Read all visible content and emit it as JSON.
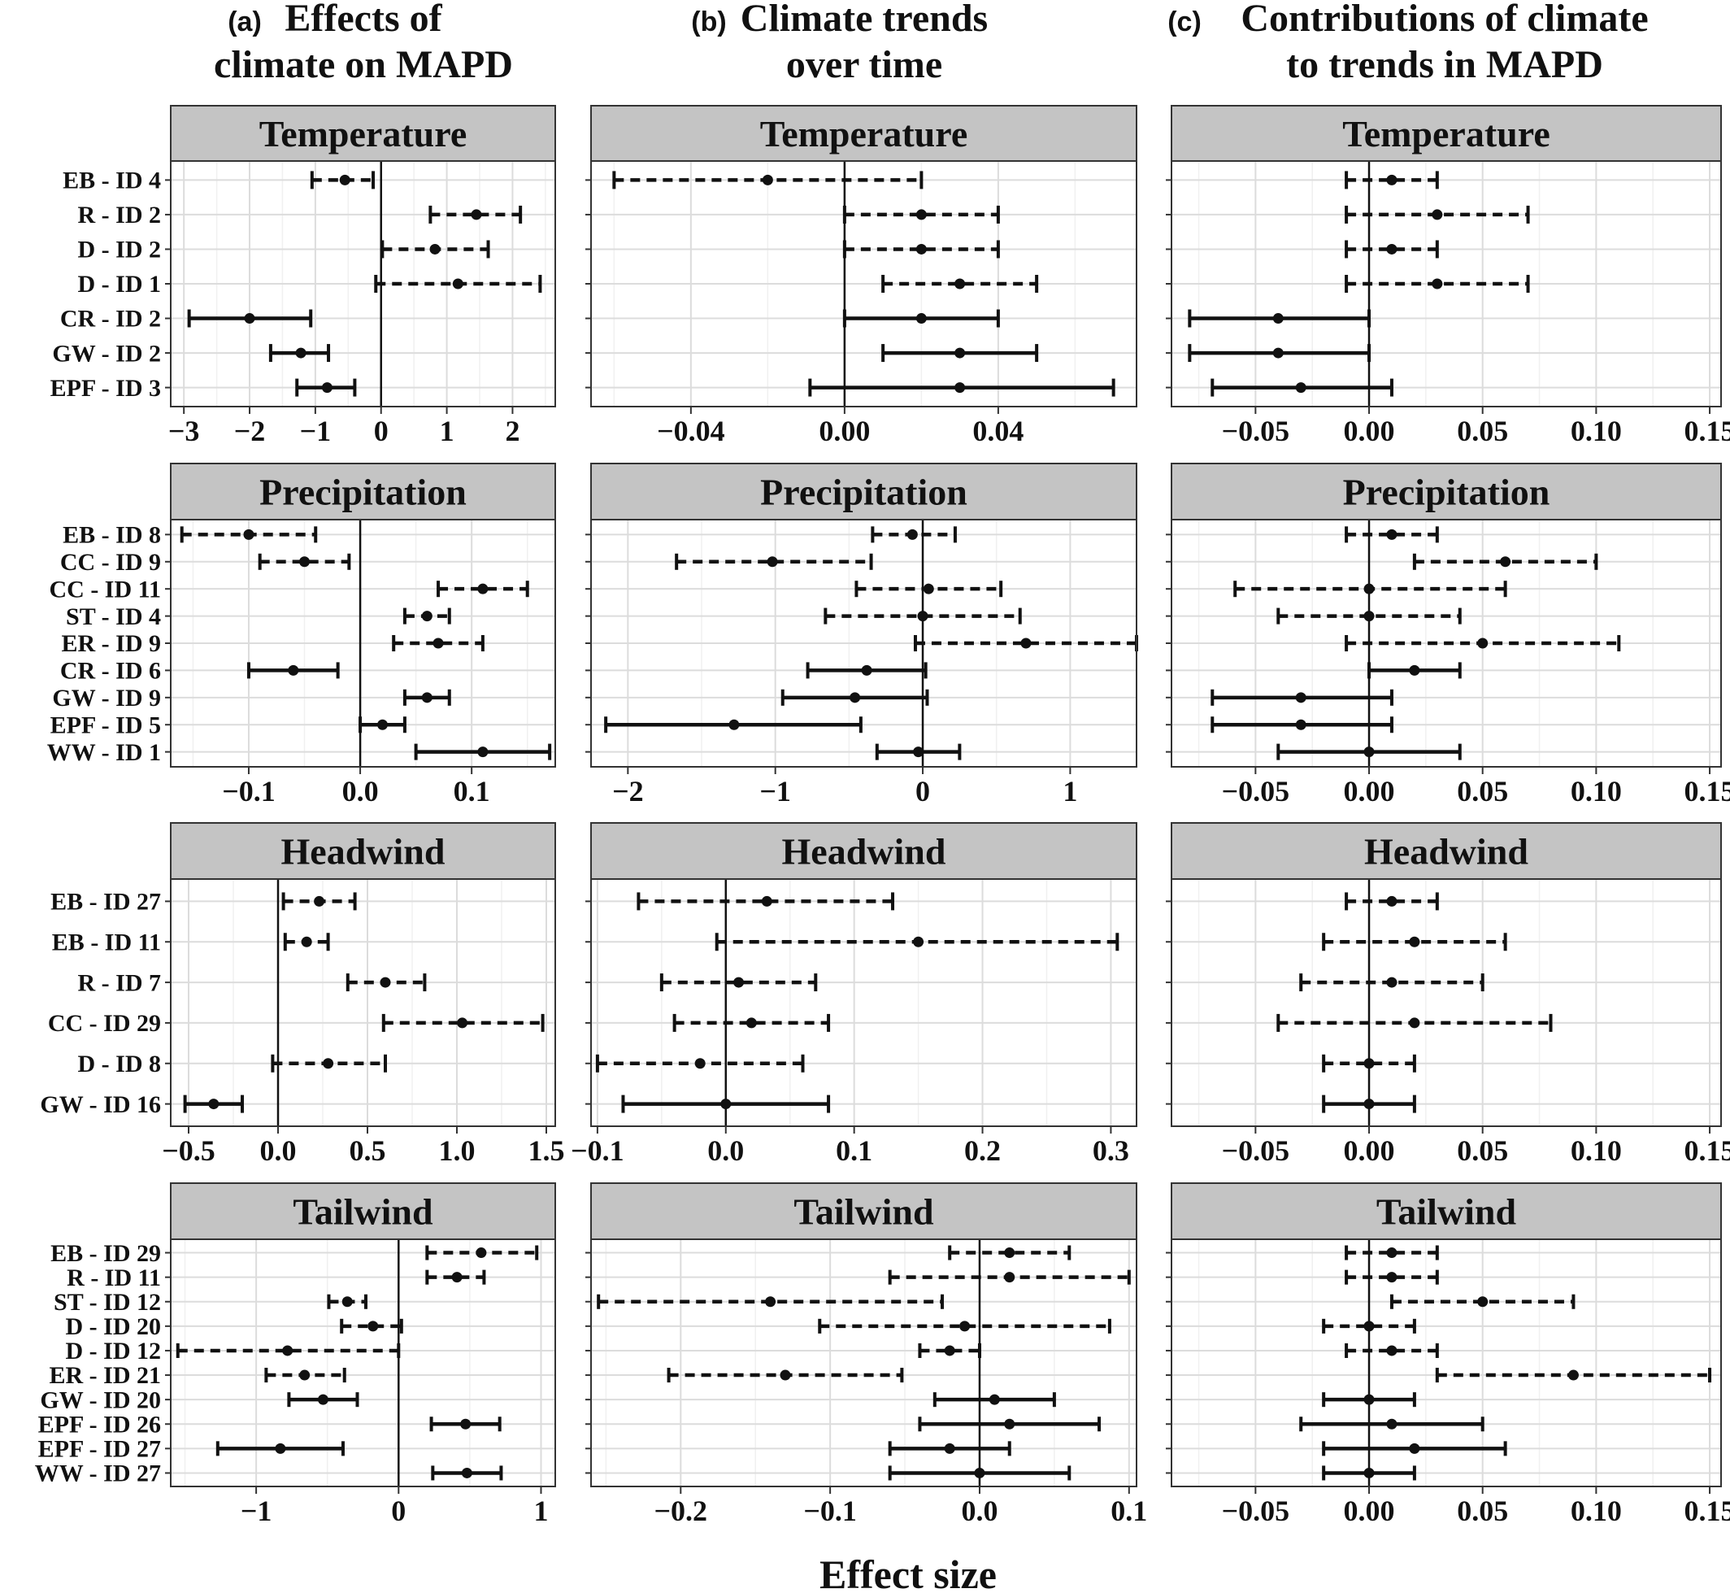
{
  "column_titles": [
    {
      "letter": "(a)",
      "line1": "Effects of",
      "line2": "climate on MAPD"
    },
    {
      "letter": "(b)",
      "line1": "Climate trends",
      "line2": "over time"
    },
    {
      "letter": "(c)",
      "line1": "Contributions of climate",
      "line2": "to trends in MAPD"
    }
  ],
  "x_axis_title": "Effect size",
  "chart_data": [
    {
      "type": "errorbar",
      "column": "a",
      "facet": "Temperature",
      "xlim": [
        -3.2,
        2.65
      ],
      "xticks": [
        -3,
        -2,
        -1,
        0,
        1,
        2
      ],
      "xtick_labels": [
        "−3",
        "−2",
        "−1",
        "0",
        "1",
        "2"
      ],
      "labels": [
        "EB - ID 4",
        "R - ID 2",
        "D - ID 2",
        "D - ID 1",
        "CR - ID 2",
        "GW - ID 2",
        "EPF - ID 3"
      ],
      "estimate": [
        -0.55,
        1.45,
        0.82,
        1.17,
        -2.0,
        -1.22,
        -0.82
      ],
      "lower": [
        -1.05,
        0.75,
        0.02,
        -0.08,
        -2.92,
        -1.68,
        -1.28
      ],
      "upper": [
        -0.12,
        2.12,
        1.63,
        2.42,
        -1.07,
        -0.8,
        -0.4
      ],
      "significant": [
        false,
        false,
        false,
        false,
        true,
        true,
        true
      ]
    },
    {
      "type": "errorbar",
      "column": "b",
      "facet": "Temperature",
      "xlim": [
        -0.066,
        0.076
      ],
      "xticks": [
        -0.04,
        0.0,
        0.04
      ],
      "xtick_labels": [
        "−0.04",
        "0.00",
        "0.04"
      ],
      "labels": [
        "EB - ID 4",
        "R - ID 2",
        "D - ID 2",
        "D - ID 1",
        "CR - ID 2",
        "GW - ID 2",
        "EPF - ID 3"
      ],
      "estimate": [
        -0.02,
        0.02,
        0.02,
        0.03,
        0.02,
        0.03,
        0.03
      ],
      "lower": [
        -0.06,
        0.0,
        0.0,
        0.01,
        0.0,
        0.01,
        -0.009
      ],
      "upper": [
        0.02,
        0.04,
        0.04,
        0.05,
        0.04,
        0.05,
        0.07
      ],
      "significant": [
        false,
        false,
        false,
        false,
        true,
        true,
        true
      ]
    },
    {
      "type": "errorbar",
      "column": "c",
      "facet": "Temperature",
      "xlim": [
        -0.087,
        0.155
      ],
      "xticks": [
        -0.05,
        0.0,
        0.05,
        0.1,
        0.15
      ],
      "xtick_labels": [
        "−0.05",
        "0.00",
        "0.05",
        "0.10",
        "0.15"
      ],
      "labels": [
        "EB - ID 4",
        "R - ID 2",
        "D - ID 2",
        "D - ID 1",
        "CR - ID 2",
        "GW - ID 2",
        "EPF - ID 3"
      ],
      "estimate": [
        0.01,
        0.03,
        0.01,
        0.03,
        -0.04,
        -0.04,
        -0.03
      ],
      "lower": [
        -0.01,
        -0.01,
        -0.01,
        -0.01,
        -0.079,
        -0.079,
        -0.069
      ],
      "upper": [
        0.03,
        0.07,
        0.03,
        0.07,
        0.0,
        0.0,
        0.01
      ],
      "significant": [
        false,
        false,
        false,
        false,
        true,
        true,
        true
      ]
    },
    {
      "type": "errorbar",
      "column": "a",
      "facet": "Precipitation",
      "xlim": [
        -0.17,
        0.175
      ],
      "xticks": [
        -0.1,
        0.0,
        0.1
      ],
      "xtick_labels": [
        "−0.1",
        "0.0",
        "0.1"
      ],
      "labels": [
        "EB - ID 8",
        "CC - ID 9",
        "CC - ID 11",
        "ST - ID 4",
        "ER - ID 9",
        "CR - ID 6",
        "GW - ID 9",
        "EPF - ID 5",
        "WW - ID 1"
      ],
      "estimate": [
        -0.1,
        -0.05,
        0.11,
        0.06,
        0.07,
        -0.06,
        0.06,
        0.02,
        0.11
      ],
      "lower": [
        -0.16,
        -0.09,
        0.07,
        0.04,
        0.03,
        -0.1,
        0.04,
        0.0,
        0.05
      ],
      "upper": [
        -0.04,
        -0.01,
        0.15,
        0.08,
        0.11,
        -0.02,
        0.08,
        0.04,
        0.17
      ],
      "significant": [
        false,
        false,
        false,
        false,
        false,
        true,
        true,
        true,
        true
      ]
    },
    {
      "type": "errorbar",
      "column": "b",
      "facet": "Precipitation",
      "xlim": [
        -2.25,
        1.45
      ],
      "xticks": [
        -2,
        -1,
        0,
        1
      ],
      "xtick_labels": [
        "−2",
        "−1",
        "0",
        "1"
      ],
      "labels": [
        "EB - ID 8",
        "CC - ID 9",
        "CC - ID 11",
        "ST - ID 4",
        "ER - ID 9",
        "CR - ID 6",
        "GW - ID 9",
        "EPF - ID 5",
        "WW - ID 1"
      ],
      "estimate": [
        -0.07,
        -1.02,
        0.04,
        0.0,
        0.7,
        -0.38,
        -0.46,
        -1.28,
        -0.03
      ],
      "lower": [
        -0.34,
        -1.67,
        -0.45,
        -0.66,
        -0.05,
        -0.78,
        -0.95,
        -2.15,
        -0.31
      ],
      "upper": [
        0.22,
        -0.35,
        0.53,
        0.66,
        1.45,
        0.02,
        0.03,
        -0.42,
        0.25
      ],
      "significant": [
        false,
        false,
        false,
        false,
        false,
        true,
        true,
        true,
        true
      ]
    },
    {
      "type": "errorbar",
      "column": "c",
      "facet": "Precipitation",
      "xlim": [
        -0.087,
        0.155
      ],
      "xticks": [
        -0.05,
        0.0,
        0.05,
        0.1,
        0.15
      ],
      "xtick_labels": [
        "−0.05",
        "0.00",
        "0.05",
        "0.10",
        "0.15"
      ],
      "labels": [
        "EB - ID 8",
        "CC - ID 9",
        "CC - ID 11",
        "ST - ID 4",
        "ER - ID 9",
        "CR - ID 6",
        "GW - ID 9",
        "EPF - ID 5",
        "WW - ID 1"
      ],
      "estimate": [
        0.01,
        0.06,
        0.0,
        0.0,
        0.05,
        0.02,
        -0.03,
        -0.03,
        0.0
      ],
      "lower": [
        -0.01,
        0.02,
        -0.059,
        -0.04,
        -0.01,
        0.0,
        -0.069,
        -0.069,
        -0.04
      ],
      "upper": [
        0.03,
        0.1,
        0.06,
        0.04,
        0.11,
        0.04,
        0.01,
        0.01,
        0.04
      ],
      "significant": [
        false,
        false,
        false,
        false,
        false,
        true,
        true,
        true,
        true
      ]
    },
    {
      "type": "errorbar",
      "column": "a",
      "facet": "Headwind",
      "xlim": [
        -0.6,
        1.55
      ],
      "xticks": [
        -0.5,
        0.0,
        0.5,
        1.0,
        1.5
      ],
      "xtick_labels": [
        "−0.5",
        "0.0",
        "0.5",
        "1.0",
        "1.5"
      ],
      "labels": [
        "EB - ID 27",
        "EB - ID 11",
        "R - ID 7",
        "CC - ID 29",
        "D - ID 8",
        "GW - ID 16"
      ],
      "estimate": [
        0.23,
        0.16,
        0.6,
        1.03,
        0.28,
        -0.36
      ],
      "lower": [
        0.03,
        0.04,
        0.39,
        0.59,
        -0.03,
        -0.52
      ],
      "upper": [
        0.43,
        0.28,
        0.82,
        1.48,
        0.6,
        -0.2
      ],
      "significant": [
        false,
        false,
        false,
        false,
        false,
        true
      ]
    },
    {
      "type": "errorbar",
      "column": "b",
      "facet": "Headwind",
      "xlim": [
        -0.105,
        0.32
      ],
      "xticks": [
        -0.1,
        0.0,
        0.1,
        0.2,
        0.3
      ],
      "xtick_labels": [
        "−0.1",
        "0.0",
        "0.1",
        "0.2",
        "0.3"
      ],
      "labels": [
        "EB - ID 27",
        "EB - ID 11",
        "R - ID 7",
        "CC - ID 29",
        "D - ID 8",
        "GW - ID 16"
      ],
      "estimate": [
        0.032,
        0.15,
        0.01,
        0.02,
        -0.02,
        0.0
      ],
      "lower": [
        -0.068,
        -0.007,
        -0.05,
        -0.04,
        -0.1,
        -0.08
      ],
      "upper": [
        0.13,
        0.305,
        0.07,
        0.08,
        0.06,
        0.08
      ],
      "significant": [
        false,
        false,
        false,
        false,
        false,
        true
      ]
    },
    {
      "type": "errorbar",
      "column": "c",
      "facet": "Headwind",
      "xlim": [
        -0.087,
        0.155
      ],
      "xticks": [
        -0.05,
        0.0,
        0.05,
        0.1,
        0.15
      ],
      "xtick_labels": [
        "−0.05",
        "0.00",
        "0.05",
        "0.10",
        "0.15"
      ],
      "labels": [
        "EB - ID 27",
        "EB - ID 11",
        "R - ID 7",
        "CC - ID 29",
        "D - ID 8",
        "GW - ID 16"
      ],
      "estimate": [
        0.01,
        0.02,
        0.01,
        0.02,
        0.0,
        0.0
      ],
      "lower": [
        -0.01,
        -0.02,
        -0.03,
        -0.04,
        -0.02,
        -0.02
      ],
      "upper": [
        0.03,
        0.06,
        0.05,
        0.08,
        0.02,
        0.02
      ],
      "significant": [
        false,
        false,
        false,
        false,
        false,
        true
      ]
    },
    {
      "type": "errorbar",
      "column": "a",
      "facet": "Tailwind",
      "xlim": [
        -1.6,
        1.1
      ],
      "xticks": [
        -1,
        0,
        1
      ],
      "xtick_labels": [
        "−1",
        "0",
        "1"
      ],
      "labels": [
        "EB - ID 29",
        "R - ID 11",
        "ST - ID 12",
        "D - ID 20",
        "D - ID 12",
        "ER - ID 21",
        "GW - ID 20",
        "EPF - ID 26",
        "EPF - ID 27",
        "WW - ID 27"
      ],
      "estimate": [
        0.58,
        0.41,
        -0.36,
        -0.18,
        -0.78,
        -0.66,
        -0.53,
        0.47,
        -0.83,
        0.48
      ],
      "lower": [
        0.2,
        0.2,
        -0.49,
        -0.4,
        -1.55,
        -0.93,
        -0.77,
        0.23,
        -1.27,
        0.24
      ],
      "upper": [
        0.97,
        0.6,
        -0.23,
        0.02,
        0.0,
        -0.38,
        -0.29,
        0.71,
        -0.39,
        0.72
      ],
      "significant": [
        false,
        false,
        false,
        false,
        false,
        false,
        true,
        true,
        true,
        true
      ]
    },
    {
      "type": "errorbar",
      "column": "b",
      "facet": "Tailwind",
      "xlim": [
        -0.26,
        0.105
      ],
      "xticks": [
        -0.2,
        -0.1,
        0.0,
        0.1
      ],
      "xtick_labels": [
        "−0.2",
        "−0.1",
        "0.0",
        "0.1"
      ],
      "labels": [
        "EB - ID 29",
        "R - ID 11",
        "ST - ID 12",
        "D - ID 20",
        "D - ID 12",
        "ER - ID 21",
        "GW - ID 20",
        "EPF - ID 26",
        "EPF - ID 27",
        "WW - ID 27"
      ],
      "estimate": [
        0.02,
        0.02,
        -0.14,
        -0.01,
        -0.02,
        -0.13,
        0.01,
        0.02,
        -0.02,
        0.0
      ],
      "lower": [
        -0.02,
        -0.06,
        -0.255,
        -0.107,
        -0.04,
        -0.208,
        -0.03,
        -0.04,
        -0.06,
        -0.06
      ],
      "upper": [
        0.06,
        0.1,
        -0.025,
        0.087,
        0.0,
        -0.052,
        0.05,
        0.08,
        0.02,
        0.06
      ],
      "significant": [
        false,
        false,
        false,
        false,
        false,
        false,
        true,
        true,
        true,
        true
      ]
    },
    {
      "type": "errorbar",
      "column": "c",
      "facet": "Tailwind",
      "xlim": [
        -0.087,
        0.155
      ],
      "xticks": [
        -0.05,
        0.0,
        0.05,
        0.1,
        0.15
      ],
      "xtick_labels": [
        "−0.05",
        "0.00",
        "0.05",
        "0.10",
        "0.15"
      ],
      "labels": [
        "EB - ID 29",
        "R - ID 11",
        "ST - ID 12",
        "D - ID 20",
        "D - ID 12",
        "ER - ID 21",
        "GW - ID 20",
        "EPF - ID 26",
        "EPF - ID 27",
        "WW - ID 27"
      ],
      "estimate": [
        0.01,
        0.01,
        0.05,
        0.0,
        0.01,
        0.09,
        0.0,
        0.01,
        0.02,
        0.0
      ],
      "lower": [
        -0.01,
        -0.01,
        0.01,
        -0.02,
        -0.01,
        0.03,
        -0.02,
        -0.03,
        -0.02,
        -0.02
      ],
      "upper": [
        0.03,
        0.03,
        0.09,
        0.02,
        0.03,
        0.15,
        0.02,
        0.05,
        0.06,
        0.02
      ],
      "significant": [
        false,
        false,
        false,
        false,
        false,
        false,
        true,
        true,
        true,
        true
      ]
    }
  ]
}
